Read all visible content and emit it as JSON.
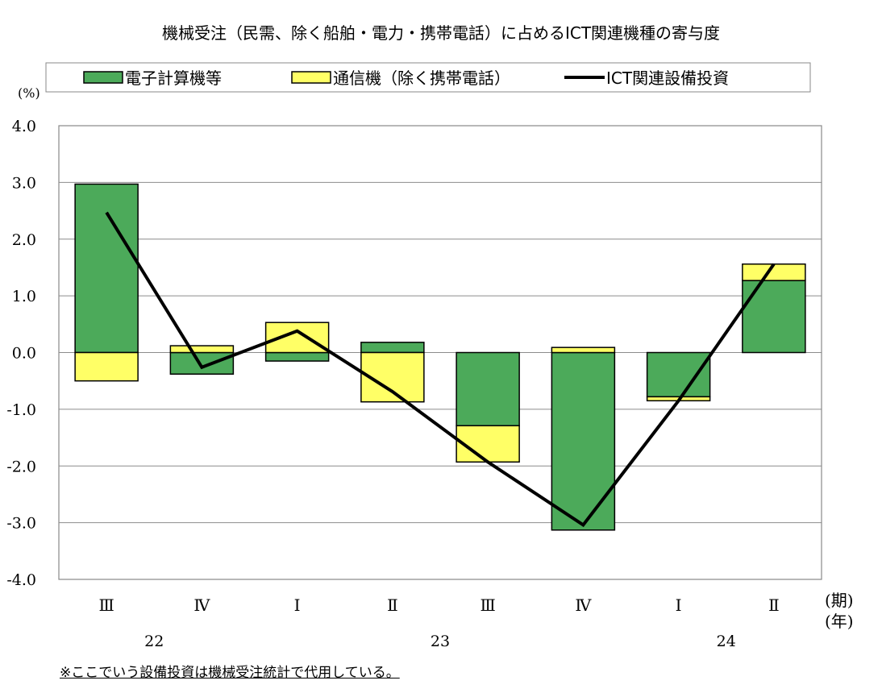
{
  "chart_data": {
    "type": "bar",
    "title": "機械受注（民需、除く船舶・電力・携帯電話）に占めるICT関連機種の寄与度",
    "ylabel": "(%)",
    "ylim": [
      -4.0,
      4.0
    ],
    "yticks": [
      "4.0",
      "3.0",
      "2.0",
      "1.0",
      "0.0",
      "-1.0",
      "-2.0",
      "-3.0",
      "-4.0"
    ],
    "ytick_values": [
      4,
      3,
      2,
      1,
      0,
      -1,
      -2,
      -3,
      -4
    ],
    "categories": [
      "Ⅲ",
      "Ⅳ",
      "Ⅰ",
      "Ⅱ",
      "Ⅲ",
      "Ⅳ",
      "Ⅰ",
      "Ⅱ"
    ],
    "years": [
      {
        "label": "22",
        "at_category": 0.5
      },
      {
        "label": "23",
        "at_category": 3.5
      },
      {
        "label": "24",
        "at_category": 6.5
      }
    ],
    "x_unit_period": "(期)",
    "x_unit_year": "(年)",
    "series": [
      {
        "name": "電子計算機等",
        "kind": "stacked-bar",
        "color": "#4caa5a",
        "values": [
          2.97,
          -0.38,
          -0.15,
          0.18,
          -1.29,
          -3.13,
          -0.78,
          1.27
        ]
      },
      {
        "name": "通信機（除く携帯電話）",
        "kind": "stacked-bar",
        "color": "#ffff66",
        "values": [
          -0.5,
          0.12,
          0.53,
          -0.87,
          -0.64,
          0.09,
          -0.07,
          0.29
        ]
      },
      {
        "name": "ICT関連設備投資",
        "kind": "line",
        "color": "#000000",
        "values": [
          2.47,
          -0.26,
          0.38,
          -0.69,
          -1.93,
          -3.04,
          -0.85,
          1.56
        ]
      }
    ],
    "grid": true,
    "legend_position": "top"
  },
  "footnote": "※ここでいう設備投資は機械受注統計で代用している。"
}
